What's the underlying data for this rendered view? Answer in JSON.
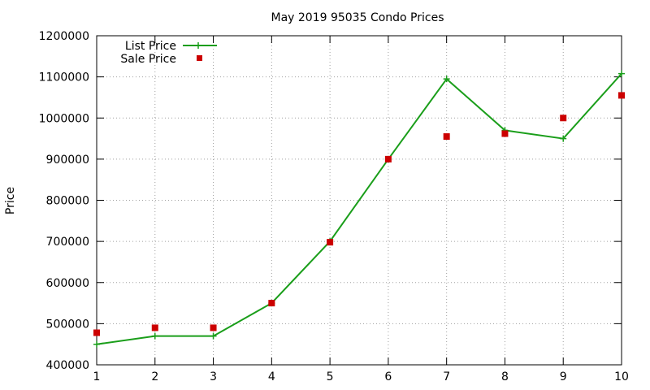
{
  "chart_data": {
    "type": "line",
    "title": "May 2019 95035 Condo Prices",
    "xlabel": "",
    "ylabel": "Price",
    "x": [
      1,
      2,
      3,
      4,
      5,
      6,
      7,
      8,
      9,
      10
    ],
    "xlim": [
      1,
      10
    ],
    "ylim": [
      400000,
      1200000
    ],
    "yticks": [
      "400000",
      "500000",
      "600000",
      "700000",
      "800000",
      "900000",
      "1000000",
      "1100000",
      "1200000"
    ],
    "xticks": [
      "1",
      "2",
      "3",
      "4",
      "5",
      "6",
      "7",
      "8",
      "9",
      "10"
    ],
    "grid": true,
    "legend_position": "top-left",
    "series": [
      {
        "name": "List Price",
        "style": "line+cross",
        "color": "#1a9e1a",
        "values": [
          450000,
          470000,
          470000,
          550000,
          700000,
          900000,
          1095000,
          970000,
          950000,
          1108000
        ]
      },
      {
        "name": "Sale Price",
        "style": "square",
        "color": "#cc0000",
        "values": [
          478000,
          490000,
          490000,
          550000,
          698000,
          900000,
          955000,
          962000,
          1000000,
          1055000
        ]
      }
    ]
  }
}
